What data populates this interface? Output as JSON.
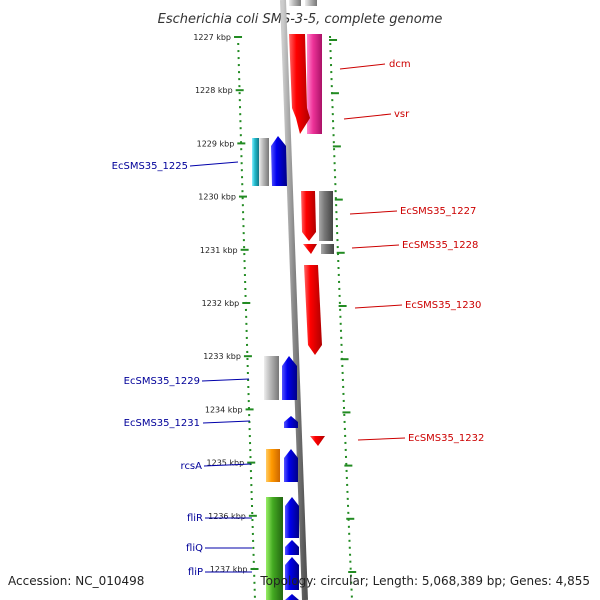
{
  "title": "Escherichia coli SMS-3-5, complete genome",
  "footer": {
    "accession": "Accession: NC_010498",
    "topology": "Topology: circular; Length: 5,068,389 bp; Genes: 4,855"
  },
  "ruler": {
    "unit": "kbp",
    "ticks": [
      {
        "kbp": 1227,
        "label": "1227 kbp"
      },
      {
        "kbp": 1228,
        "label": "1228 kbp"
      },
      {
        "kbp": 1229,
        "label": "1229 kbp"
      },
      {
        "kbp": 1230,
        "label": "1230 kbp"
      },
      {
        "kbp": 1231,
        "label": "1231 kbp"
      },
      {
        "kbp": 1232,
        "label": "1232 kbp"
      },
      {
        "kbp": 1233,
        "label": "1233 kbp"
      },
      {
        "kbp": 1234,
        "label": "1234 kbp"
      },
      {
        "kbp": 1235,
        "label": "1235 kbp"
      },
      {
        "kbp": 1236,
        "label": "1236 kbp"
      },
      {
        "kbp": 1237,
        "label": "1237 kbp"
      }
    ]
  },
  "genes_forward": [
    {
      "label": "dcm",
      "color": "#e41a1a"
    },
    {
      "label": "vsr",
      "color": "#e41a1a"
    },
    {
      "label": "EcSMS35_1227",
      "color": "#e41a1a"
    },
    {
      "label": "EcSMS35_1228",
      "color": "#e41a1a"
    },
    {
      "label": "EcSMS35_1230",
      "color": "#e41a1a"
    },
    {
      "label": "EcSMS35_1232",
      "color": "#e41a1a"
    }
  ],
  "genes_reverse": [
    {
      "label": "EcSMS35_1225",
      "color": "#1a1ab4"
    },
    {
      "label": "EcSMS35_1229",
      "color": "#1a1ab4"
    },
    {
      "label": "EcSMS35_1231",
      "color": "#1a1ab4"
    },
    {
      "label": "rcsA",
      "color": "#1a1ab4"
    },
    {
      "label": "fliR",
      "color": "#1a1ab4"
    },
    {
      "label": "fliQ",
      "color": "#1a1ab4"
    },
    {
      "label": "fliP",
      "color": "#1a1ab4"
    }
  ],
  "colors": {
    "forward_strand": "#ff0000",
    "reverse_strand": "#0000ee",
    "tick": "#228b22",
    "backbone": "#888888",
    "cog_pink": "#ee3399",
    "cog_gray": "#999999",
    "cog_cyan": "#22bbcc",
    "cog_orange": "#ff9900",
    "cog_green": "#44aa22"
  }
}
